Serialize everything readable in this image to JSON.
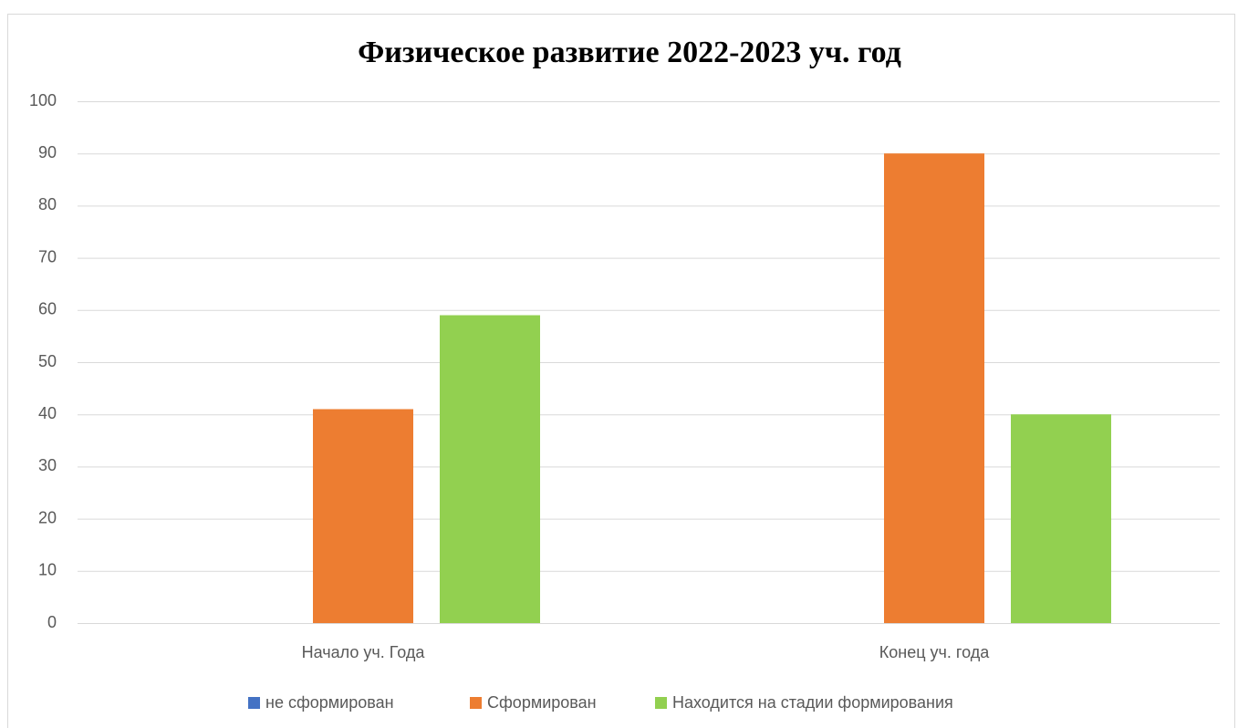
{
  "chart_data": {
    "type": "bar",
    "title": "Физическое развитие 2022-2023 уч. год",
    "categories": [
      "Начало уч. Года",
      "Конец уч. года"
    ],
    "series": [
      {
        "name": "не сформирован",
        "color": "#4472c4",
        "values": [
          0,
          0
        ]
      },
      {
        "name": "Сформирован",
        "color": "#ed7d31",
        "values": [
          41,
          90
        ]
      },
      {
        "name": "Находится на стадии формирования",
        "color": "#92d050",
        "values": [
          59,
          40
        ]
      }
    ],
    "ylim": [
      0,
      100
    ],
    "yticks": [
      0,
      10,
      20,
      30,
      40,
      50,
      60,
      70,
      80,
      90,
      100
    ],
    "grid": true,
    "legend": "bottom"
  }
}
